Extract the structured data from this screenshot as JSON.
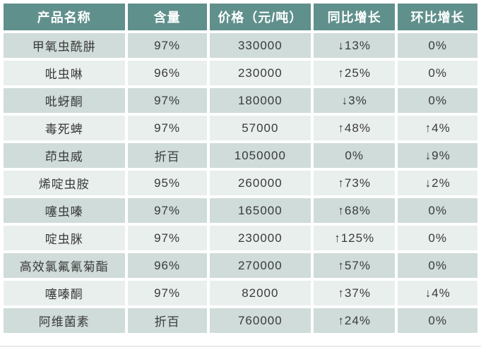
{
  "chart_data": {
    "type": "table",
    "columns": [
      "产品名称",
      "含量",
      "价格（元/吨）",
      "同比增长",
      "环比增长"
    ],
    "rows": [
      [
        "甲氧虫酰肼",
        "97%",
        "330000",
        "↓13%",
        "0%"
      ],
      [
        "吡虫啉",
        "96%",
        "230000",
        "↑25%",
        "0%"
      ],
      [
        "吡蚜酮",
        "97%",
        "180000",
        "↓3%",
        "0%"
      ],
      [
        "毒死蜱",
        "97%",
        "57000",
        "↑48%",
        "↑4%"
      ],
      [
        "茚虫威",
        "折百",
        "1050000",
        "0%",
        "↓9%"
      ],
      [
        "烯啶虫胺",
        "95%",
        "260000",
        "↑73%",
        "↓2%"
      ],
      [
        "噻虫嗪",
        "97%",
        "165000",
        "↑68%",
        "0%"
      ],
      [
        "啶虫脒",
        "97%",
        "230000",
        "↑125%",
        "0%"
      ],
      [
        "高效氯氟氰菊酯",
        "96%",
        "270000",
        "↑57%",
        "0%"
      ],
      [
        "噻嗪酮",
        "97%",
        "82000",
        "↑37%",
        "↓4%"
      ],
      [
        "阿维菌素",
        "折百",
        "760000",
        "↑24%",
        "0%"
      ]
    ],
    "layout_hints": {
      "banded_rows": true,
      "header_position": "top",
      "column_width_percents": [
        26.2,
        17.1,
        21.9,
        17.6,
        17.2
      ]
    }
  },
  "colors": {
    "header_bg": "#5f908c",
    "header_text": "#ffffff",
    "row_odd_bg": "#cfdcd9",
    "row_even_bg": "#e9efed",
    "body_text": "#3a3a3a",
    "cell_gap": "#ffffff"
  }
}
